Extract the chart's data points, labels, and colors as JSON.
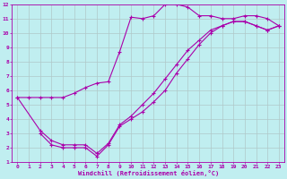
{
  "background_color": "#c0eef0",
  "grid_color": "#b0c8c8",
  "line_color": "#aa00aa",
  "marker": "+",
  "xlim": [
    -0.5,
    23.5
  ],
  "ylim": [
    1,
    12
  ],
  "xlabel": "Windchill (Refroidissement éolien,°C)",
  "xticks": [
    0,
    1,
    2,
    3,
    4,
    5,
    6,
    7,
    8,
    9,
    10,
    11,
    12,
    13,
    14,
    15,
    16,
    17,
    18,
    19,
    20,
    21,
    22,
    23
  ],
  "yticks": [
    1,
    2,
    3,
    4,
    5,
    6,
    7,
    8,
    9,
    10,
    11,
    12
  ],
  "curve1_x": [
    0,
    1,
    2,
    3,
    4,
    5,
    6,
    7,
    8,
    9,
    10,
    11,
    12,
    13,
    14,
    15,
    16,
    17,
    18,
    19,
    20,
    21,
    22,
    23
  ],
  "curve1_y": [
    5.5,
    5.5,
    5.5,
    5.5,
    5.5,
    5.8,
    6.2,
    6.5,
    6.6,
    8.7,
    11.1,
    11.0,
    11.2,
    12.0,
    12.0,
    11.8,
    11.2,
    11.2,
    11.0,
    11.0,
    11.2,
    11.2,
    11.0,
    10.5
  ],
  "curve2_x": [
    2,
    3,
    4,
    5,
    6,
    7,
    8,
    9,
    10,
    11,
    12,
    13,
    14,
    15,
    16,
    17,
    18,
    19,
    20,
    21,
    22,
    23
  ],
  "curve2_y": [
    3.0,
    2.2,
    2.0,
    2.0,
    2.0,
    1.4,
    2.2,
    3.5,
    4.0,
    4.5,
    5.2,
    6.0,
    7.2,
    8.2,
    9.2,
    10.0,
    10.5,
    10.8,
    10.8,
    10.5,
    10.2,
    10.5
  ],
  "curve3_x": [
    0,
    2,
    3,
    4,
    5,
    6,
    7,
    8,
    9,
    10,
    11,
    12,
    13,
    14,
    15,
    16,
    17,
    18,
    19,
    20,
    21,
    22,
    23
  ],
  "curve3_y": [
    5.5,
    3.2,
    2.5,
    2.2,
    2.2,
    2.2,
    1.6,
    2.3,
    3.6,
    4.2,
    5.0,
    5.8,
    6.8,
    7.8,
    8.8,
    9.5,
    10.2,
    10.5,
    10.8,
    10.8,
    10.5,
    10.2,
    10.5
  ]
}
